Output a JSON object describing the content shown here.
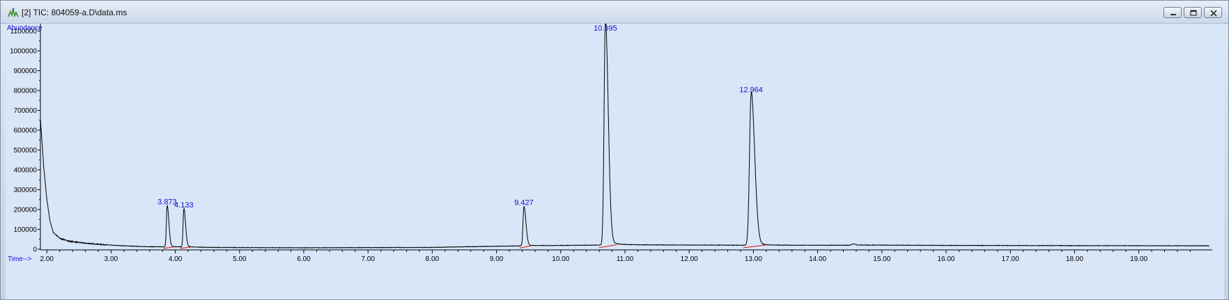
{
  "window": {
    "title": "[2] TIC: 804059-a.D\\data.ms",
    "icon": "chromatogram-icon",
    "buttons": [
      "minimize",
      "restore",
      "close"
    ]
  },
  "chart_data": {
    "type": "line",
    "ylabel": "Abundance",
    "xlabel": "Time-->",
    "xlim": [
      1.9,
      20.1
    ],
    "ylim": [
      0,
      1130000
    ],
    "xticks": [
      "2.00",
      "3.00",
      "4.00",
      "5.00",
      "6.00",
      "7.00",
      "8.00",
      "9.00",
      "10.00",
      "11.00",
      "12.00",
      "13.00",
      "14.00",
      "15.00",
      "16.00",
      "17.00",
      "18.00",
      "19.00"
    ],
    "yticks": [
      "0",
      "100000",
      "200000",
      "300000",
      "400000",
      "500000",
      "600000",
      "700000",
      "800000",
      "900000",
      "1000000",
      "1100000"
    ],
    "grid": false,
    "baseline": [
      [
        1.9,
        660000
      ],
      [
        1.95,
        420000
      ],
      [
        2.0,
        250000
      ],
      [
        2.05,
        140000
      ],
      [
        2.1,
        85000
      ],
      [
        2.2,
        55000
      ],
      [
        2.35,
        40000
      ],
      [
        2.6,
        30000
      ],
      [
        3.0,
        20000
      ],
      [
        3.5,
        13000
      ],
      [
        4.5,
        9000
      ],
      [
        6.0,
        7000
      ],
      [
        8.0,
        9000
      ],
      [
        9.0,
        15000
      ],
      [
        10.0,
        19000
      ],
      [
        11.0,
        22000
      ],
      [
        12.0,
        21000
      ],
      [
        13.0,
        20000
      ],
      [
        14.0,
        20000
      ],
      [
        14.5,
        20000
      ],
      [
        14.56,
        27000
      ],
      [
        14.62,
        21000
      ],
      [
        16.0,
        19000
      ],
      [
        18.0,
        18000
      ],
      [
        20.1,
        17000
      ]
    ],
    "peaks": [
      {
        "label": "3.873",
        "rt": 3.873,
        "height": 205000,
        "width": 0.012
      },
      {
        "label": "4.133",
        "rt": 4.133,
        "height": 190000,
        "width": 0.012
      },
      {
        "label": "9.427",
        "rt": 9.427,
        "height": 195000,
        "width": 0.014
      },
      {
        "label": "10.695",
        "rt": 10.695,
        "height": 1120000,
        "width": 0.02
      },
      {
        "label": "12.964",
        "rt": 12.964,
        "height": 760000,
        "width": 0.025
      }
    ]
  },
  "colors": {
    "trace": "#000000",
    "integration": "#e01010",
    "labels": "#1010d0",
    "plot_background": "#d9e6f8"
  }
}
